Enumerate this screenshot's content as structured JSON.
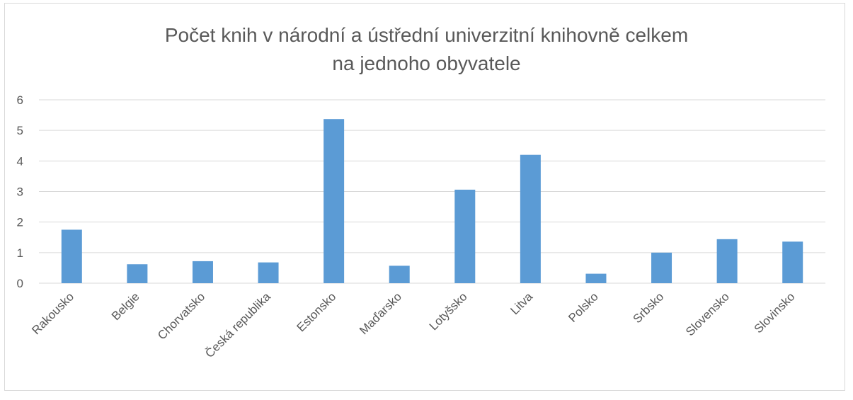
{
  "chart_data": {
    "type": "bar",
    "title": [
      "Počet knih v národní a ústřední univerzitní knihovně celkem",
      "na jednoho obyvatele"
    ],
    "categories": [
      "Rakousko",
      "Belgie",
      "Chorvatsko",
      "Česká republika",
      "Estonsko",
      "Maďarsko",
      "Lotyšsko",
      "Litva",
      "Polsko",
      "Srbsko",
      "Slovensko",
      "Slovinsko"
    ],
    "values": [
      1.75,
      0.62,
      0.72,
      0.68,
      5.37,
      0.57,
      3.06,
      4.2,
      0.31,
      1.0,
      1.44,
      1.36
    ],
    "ylim": [
      0,
      6
    ],
    "yticks": [
      0,
      1,
      2,
      3,
      4,
      5,
      6
    ],
    "grid": true,
    "legend": "none",
    "bar_color": "#5b9bd5",
    "grid_color": "#d9d9d9"
  }
}
